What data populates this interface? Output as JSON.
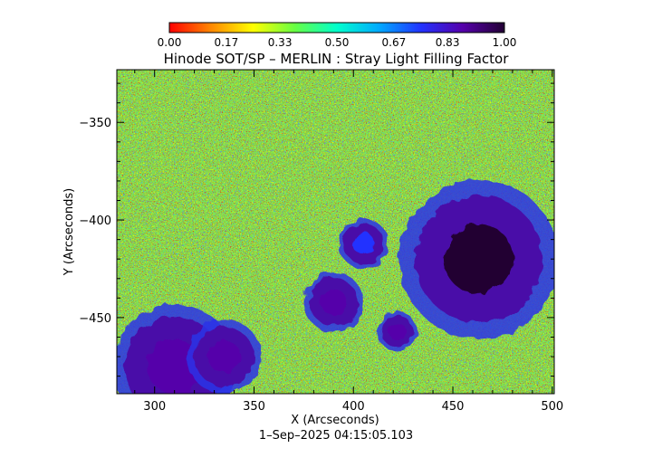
{
  "chart_data": {
    "type": "heatmap",
    "title": "Hinode SOT/SP – MERLIN : Stray Light Filling Factor",
    "xlabel": "X (Arcseconds)",
    "ylabel": "Y (Arcseconds)",
    "timestamp": "1–Sep–2025 04:15:05.103",
    "xlim": [
      281,
      501
    ],
    "ylim": [
      -489,
      -323
    ],
    "x_ticks": [
      300,
      350,
      400,
      450,
      500
    ],
    "x_tick_labels": [
      "300",
      "350",
      "400",
      "450",
      "500"
    ],
    "y_ticks": [
      -350,
      -400,
      -450
    ],
    "y_tick_labels": [
      "−350",
      "−400",
      "−450"
    ],
    "colorbar": {
      "range": [
        0,
        1
      ],
      "ticks": [
        0.0,
        0.17,
        0.33,
        0.5,
        0.67,
        0.83,
        1.0
      ],
      "tick_labels": [
        "0.00",
        "0.17",
        "0.33",
        "0.50",
        "0.67",
        "0.83",
        "1.00"
      ],
      "colormap": [
        "#ff0000",
        "#ff8800",
        "#ffff00",
        "#66ff44",
        "#00ffcc",
        "#00aaff",
        "#2233ff",
        "#5500aa",
        "#220033"
      ]
    },
    "features": [
      {
        "name": "sunspot",
        "center": [
          463,
          -420
        ],
        "radius": 32,
        "value": 0.95
      },
      {
        "name": "sunspot",
        "center": [
          422,
          -457
        ],
        "radius": 8,
        "value": 0.92
      },
      {
        "name": "pore cluster",
        "center": [
          310,
          -475
        ],
        "radius": 25,
        "value": 0.9
      },
      {
        "name": "pore cluster",
        "center": [
          335,
          -470
        ],
        "radius": 15,
        "value": 0.85
      },
      {
        "name": "pore cluster",
        "center": [
          390,
          -442
        ],
        "radius": 12,
        "value": 0.88
      },
      {
        "name": "pore cluster",
        "center": [
          405,
          -412
        ],
        "radius": 10,
        "value": 0.8
      }
    ],
    "background_value": 0.45,
    "grid": false,
    "legend": "colorbar-top"
  }
}
